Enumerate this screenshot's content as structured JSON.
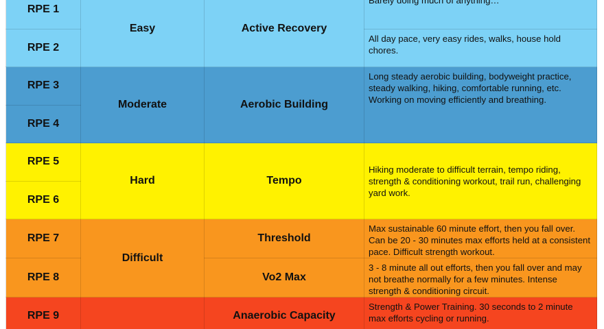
{
  "table": {
    "bands": [
      {
        "level": "Easy",
        "color": "#7dd2f6",
        "zones": [
          {
            "name": "Active Recovery",
            "rpes": [
              "RPE 1",
              "RPE 2"
            ],
            "descriptions": [
              "Barely doing much of anything…",
              "All day pace, very easy rides, walks, house hold chores."
            ]
          }
        ]
      },
      {
        "level": "Moderate",
        "color": "#4c9dd0",
        "zones": [
          {
            "name": "Aerobic Building",
            "rpes": [
              "RPE 3",
              "RPE 4"
            ],
            "descriptions": [
              "Long steady aerobic building, bodyweight practice, steady walking, hiking, comfortable running, etc. Working on moving efficiently and breathing."
            ]
          }
        ]
      },
      {
        "level": "Hard",
        "color": "#fff200",
        "zones": [
          {
            "name": "Tempo",
            "rpes": [
              "RPE 5",
              "RPE 6"
            ],
            "descriptions": [
              "Hiking moderate to difficult terrain, tempo riding, strength & conditioning workout, trail run, challenging yard work."
            ]
          }
        ]
      },
      {
        "level": "Difficult",
        "color": "#f9961e",
        "zones": [
          {
            "name": "Threshold",
            "rpes": [
              "RPE 7"
            ],
            "descriptions": [
              "Max sustainable 60 minute effort, then you fall over. Can be 20 - 30 minutes max efforts held at a consistent pace. Difficult strength workout."
            ]
          },
          {
            "name": "Vo2 Max",
            "rpes": [
              "RPE 8"
            ],
            "descriptions": [
              "3 - 8 minute all out efforts, then you fall over and may not breathe normally for a few minutes. Intense strength & conditioning circuit."
            ]
          }
        ]
      },
      {
        "color": "#f5451f",
        "zones": [
          {
            "name": "Anaerobic Capacity",
            "rpes": [
              "RPE 9"
            ],
            "descriptions": [
              "Strength & Power Training. 30 seconds to 2 minute max efforts cycling or running."
            ]
          }
        ]
      }
    ]
  }
}
